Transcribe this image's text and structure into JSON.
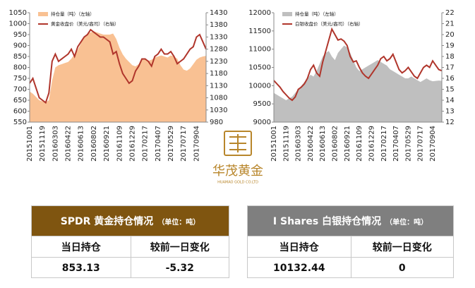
{
  "chart_data": [
    {
      "type": "combo",
      "categories": [
        "20151001",
        null,
        null,
        null,
        "20151119",
        null,
        null,
        null,
        "20160303",
        null,
        null,
        null,
        "20160422",
        null,
        null,
        null,
        "20160613",
        null,
        null,
        null,
        "20160802",
        null,
        null,
        null,
        "20160921",
        null,
        null,
        null,
        "20161109",
        null,
        null,
        null,
        "20161229",
        null,
        null,
        null,
        "20170217",
        null,
        null,
        null,
        "20170407",
        null,
        null,
        null,
        "20170529",
        null,
        null,
        null,
        "20170717",
        null,
        null,
        null,
        "20170904",
        null,
        null,
        null
      ],
      "ylim": [
        550,
        1050
      ],
      "yticks": [
        550,
        600,
        650,
        700,
        750,
        800,
        850,
        900,
        950,
        1000,
        1050
      ],
      "y2lim": [
        980,
        1430
      ],
      "y2ticks": [
        980,
        1030,
        1080,
        1130,
        1180,
        1230,
        1280,
        1330,
        1380,
        1430
      ],
      "series": [
        {
          "name": "持仓量（吨）（左轴）",
          "type": "area",
          "color": "#f9c193",
          "values": [
            690,
            680,
            665,
            650,
            645,
            640,
            650,
            740,
            800,
            810,
            815,
            820,
            825,
            840,
            860,
            880,
            910,
            940,
            955,
            960,
            965,
            960,
            955,
            950,
            950,
            950,
            955,
            930,
            890,
            860,
            840,
            825,
            810,
            805,
            815,
            835,
            840,
            830,
            835,
            845,
            850,
            855,
            850,
            845,
            855,
            850,
            840,
            810,
            790,
            785,
            795,
            815,
            835,
            845,
            850,
            853
          ]
        },
        {
          "name": "黄金收盘价（美元/盎司）（右轴）",
          "type": "line",
          "axis": "y2",
          "color": "#b0352b",
          "values": [
            1140,
            1160,
            1120,
            1080,
            1070,
            1060,
            1100,
            1230,
            1260,
            1230,
            1240,
            1250,
            1260,
            1280,
            1250,
            1290,
            1310,
            1330,
            1340,
            1360,
            1350,
            1340,
            1330,
            1330,
            1320,
            1310,
            1260,
            1270,
            1220,
            1180,
            1160,
            1140,
            1150,
            1190,
            1210,
            1240,
            1240,
            1230,
            1210,
            1250,
            1260,
            1280,
            1260,
            1260,
            1270,
            1250,
            1220,
            1230,
            1240,
            1260,
            1280,
            1290,
            1330,
            1340,
            1310,
            1280
          ]
        }
      ]
    },
    {
      "type": "combo",
      "categories": [
        "20151001",
        null,
        null,
        null,
        "20151119",
        null,
        null,
        null,
        "20160303",
        null,
        null,
        null,
        "20160422",
        null,
        null,
        null,
        "20160613",
        null,
        null,
        null,
        "20160802",
        null,
        null,
        null,
        "20160921",
        null,
        null,
        null,
        "20161109",
        null,
        null,
        null,
        "20161229",
        null,
        null,
        null,
        "20170217",
        null,
        null,
        null,
        "20170407",
        null,
        null,
        null,
        "20170529",
        null,
        null,
        null,
        "20170717",
        null,
        null,
        null,
        "20170904",
        null,
        null,
        null
      ],
      "ylim": [
        9000,
        12000
      ],
      "yticks": [
        9000,
        9500,
        10000,
        10500,
        11000,
        11500,
        12000
      ],
      "y2lim": [
        12,
        22
      ],
      "y2ticks": [
        12,
        13,
        14,
        15,
        16,
        17,
        18,
        19,
        20,
        21,
        22
      ],
      "series": [
        {
          "name": "持仓量（吨）（左轴）",
          "type": "area",
          "color": "#bfbfbf",
          "values": [
            9800,
            9750,
            9700,
            9650,
            9600,
            9650,
            9700,
            9800,
            9900,
            10000,
            10100,
            10200,
            10300,
            10250,
            10400,
            10600,
            10800,
            10900,
            10950,
            10800,
            10700,
            10900,
            11000,
            11100,
            11050,
            10900,
            10700,
            10500,
            10400,
            10450,
            10500,
            10550,
            10600,
            10650,
            10700,
            10650,
            10600,
            10550,
            10450,
            10400,
            10350,
            10300,
            10250,
            10200,
            10200,
            10250,
            10200,
            10150,
            10100,
            10150,
            10200,
            10150,
            10120,
            10130,
            10140,
            10132.44
          ]
        },
        {
          "name": "白银收盘价（美元/盎司）（右轴）",
          "type": "line",
          "axis": "y2",
          "color": "#b0352b",
          "values": [
            15.8,
            15.5,
            15.2,
            14.8,
            14.5,
            14.2,
            14.0,
            14.3,
            15.0,
            15.2,
            15.5,
            16.0,
            16.8,
            17.2,
            16.5,
            16.2,
            17.5,
            18.5,
            19.5,
            20.5,
            20.0,
            19.5,
            19.6,
            19.4,
            19.0,
            18.0,
            17.5,
            17.6,
            17.0,
            16.5,
            16.2,
            16.0,
            16.4,
            16.8,
            17.2,
            17.8,
            18.0,
            17.6,
            17.8,
            18.2,
            17.5,
            16.8,
            16.5,
            16.7,
            17.0,
            16.6,
            16.2,
            16.0,
            16.5,
            17.0,
            17.2,
            17.0,
            17.6,
            17.2,
            16.8,
            16.7
          ]
        }
      ]
    }
  ],
  "logo": {
    "name": "华茂黄金",
    "subtitle": "HUAMAO GOLD CO.LTD"
  },
  "tables": [
    {
      "title": "SPDR 黄金持仓情况",
      "unit": "（单位：吨）",
      "headers": [
        "当日持仓",
        "较前一日变化"
      ],
      "row": [
        "853.13",
        "-5.32"
      ]
    },
    {
      "title": "I Shares 白银持仓情况",
      "unit": "（单位：吨）",
      "headers": [
        "当日持仓",
        "较前一日变化"
      ],
      "row": [
        "10132.44",
        "0"
      ]
    }
  ]
}
